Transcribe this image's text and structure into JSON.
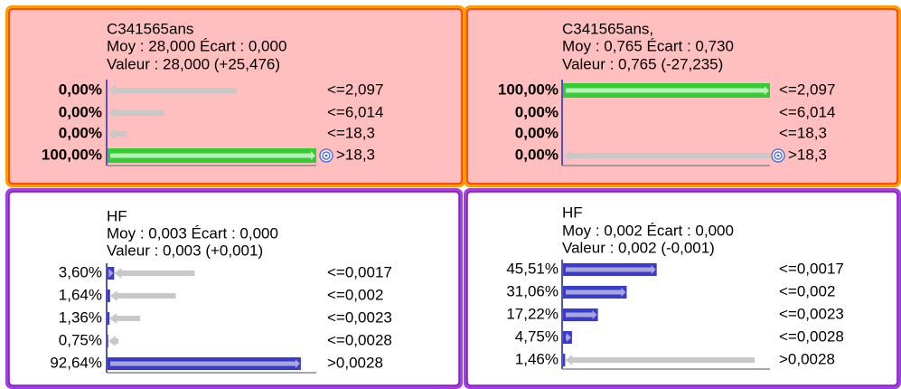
{
  "panels": [
    {
      "title": "C341565ans",
      "stats": "Moy : 28,000 Écart : 0,000",
      "value": "Valeur : 28,000 (+25,476)",
      "rows": [
        {
          "pct": "0,00%",
          "value": 0,
          "previous": 62,
          "label": "<=2,097"
        },
        {
          "pct": "0,00%",
          "value": 0,
          "previous": 27.6,
          "label": "<=6,014"
        },
        {
          "pct": "0,00%",
          "value": 0,
          "previous": 9.5,
          "label": "<=18,3"
        },
        {
          "pct": "100,00%",
          "value": 100,
          "label": ">18,3",
          "observed": true
        }
      ]
    },
    {
      "title": "C341565ans,",
      "stats": "Moy : 0,765 Écart : 0,730",
      "value": "Valeur : 0,765 (-27,235)",
      "rows": [
        {
          "pct": "100,00%",
          "value": 100,
          "label": "<=2,097"
        },
        {
          "pct": "0,00%",
          "value": 0,
          "label": "<=6,014"
        },
        {
          "pct": "0,00%",
          "value": 0,
          "label": "<=18,3"
        },
        {
          "pct": "0,00%",
          "value": 0,
          "previous": 100,
          "label": ">18,3",
          "observed": true
        }
      ]
    },
    {
      "title": "HF",
      "stats": "Moy : 0,003 Écart : 0,000",
      "value": "Valeur : 0,003 (+0,001)",
      "rows": [
        {
          "pct": "3,60%",
          "value": 3.6,
          "previous": 42,
          "label": "<=0,0017"
        },
        {
          "pct": "1,64%",
          "value": 1.64,
          "previous": 33,
          "label": "<=0,002"
        },
        {
          "pct": "1,36%",
          "value": 1.36,
          "previous": 16,
          "label": "<=0,0023"
        },
        {
          "pct": "0,75%",
          "value": 0.75,
          "previous": 5.6,
          "label": "<=0,0028"
        },
        {
          "pct": "92,64%",
          "value": 92.64,
          "label": ">0,0028"
        }
      ]
    },
    {
      "title": "HF",
      "stats": "Moy : 0,002 Écart : 0,000",
      "value": "Valeur : 0,002 (-0,001)",
      "rows": [
        {
          "pct": "45,51%",
          "value": 45.51,
          "label": "<=0,0017"
        },
        {
          "pct": "31,06%",
          "value": 31.06,
          "label": "<=0,002"
        },
        {
          "pct": "17,22%",
          "value": 17.22,
          "label": "<=0,0023"
        },
        {
          "pct": "4,75%",
          "value": 4.75,
          "label": "<=0,0028"
        },
        {
          "pct": "1,46%",
          "value": 1.46,
          "previous": 92.6,
          "label": ">0,0028"
        }
      ]
    }
  ]
}
